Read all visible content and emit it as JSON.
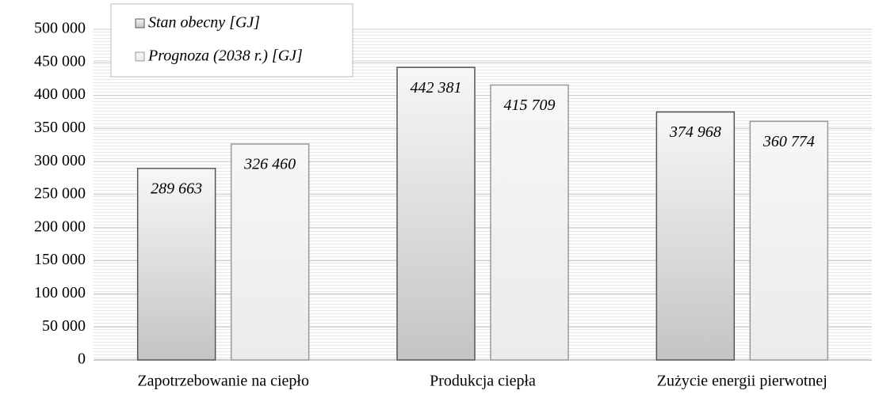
{
  "chart_data": {
    "type": "bar",
    "categories": [
      "Zapotrzebowanie na ciepło",
      "Produkcja ciepła",
      "Zużycie energii pierwotnej"
    ],
    "series": [
      {
        "name": "Stan obecny [GJ]",
        "color": "#c4c4c4",
        "values": [
          289663,
          442381,
          374968
        ],
        "value_labels": [
          "289 663",
          "442 381",
          "374 968"
        ]
      },
      {
        "name": "Prognoza (2038 r.) [GJ]",
        "color": "#ebebeb",
        "values": [
          326460,
          415709,
          360774
        ],
        "value_labels": [
          "326 460",
          "415 709",
          "360 774"
        ]
      }
    ],
    "ylim": [
      0,
      500000
    ],
    "yticks": [
      0,
      {
        "value": 50000,
        "label": "50 000"
      },
      {
        "value": 100000,
        "label": "100 000"
      },
      {
        "value": 150000,
        "label": "150 000"
      },
      {
        "value": 200000,
        "label": "200 000"
      },
      {
        "value": 250000,
        "label": "250 000"
      },
      {
        "value": 300000,
        "label": "300 000"
      },
      {
        "value": 350000,
        "label": "350 000"
      },
      {
        "value": 400000,
        "label": "400 000"
      },
      {
        "value": 450000,
        "label": "450 000"
      },
      {
        "value": 500000,
        "label": "500 000"
      }
    ],
    "grid": true
  }
}
